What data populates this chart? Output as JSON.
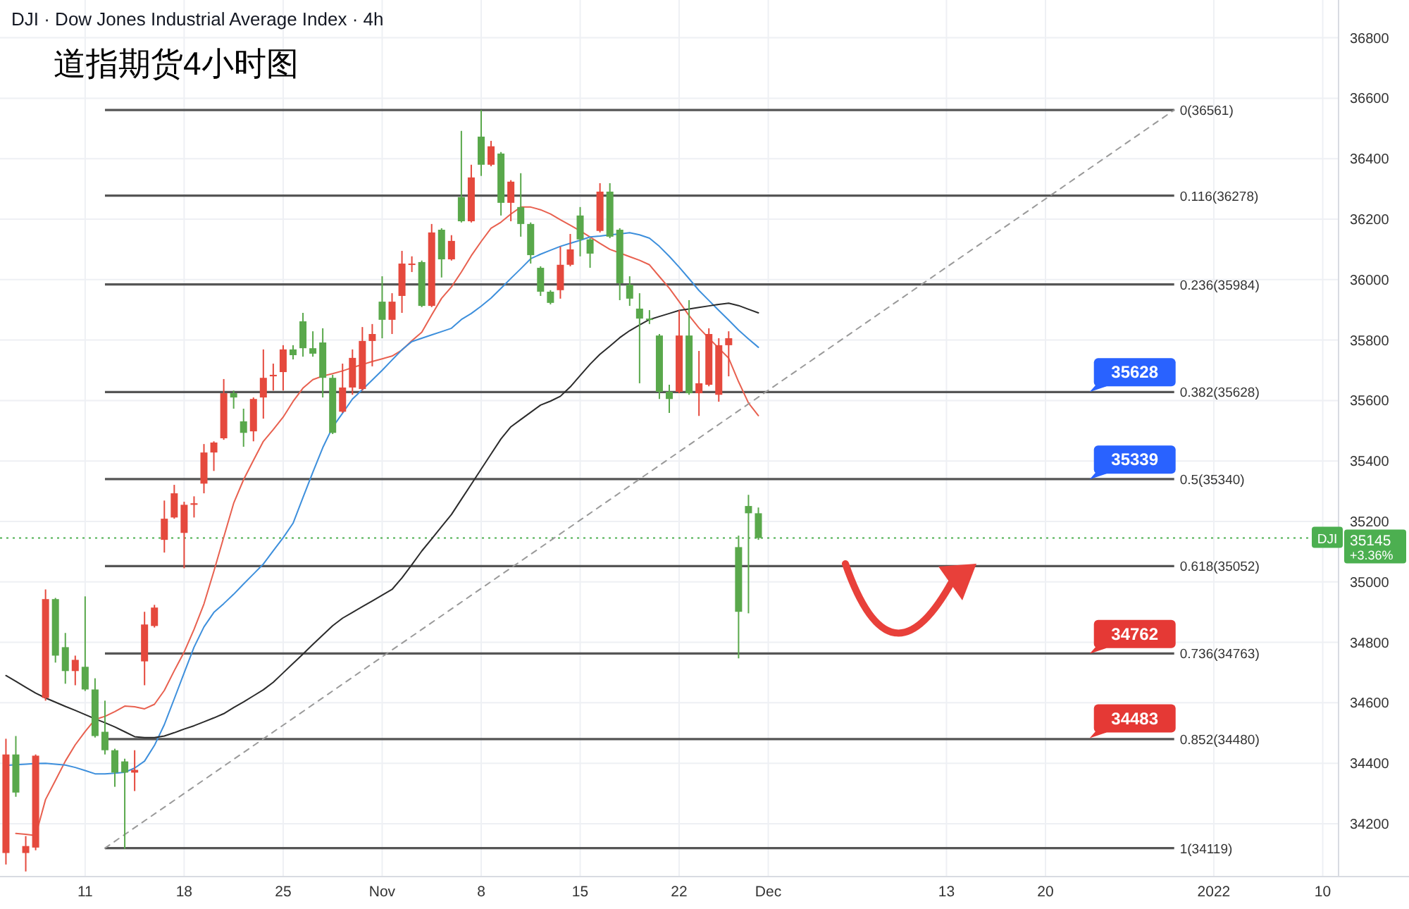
{
  "chart_data": {
    "type": "candlestick",
    "title": "道指期货4小时图",
    "subtitle": "DJI · Dow Jones Industrial Average Index · 4h",
    "categories": [
      null,
      null,
      null,
      null,
      null,
      null,
      null,
      null,
      "11",
      null,
      null,
      null,
      null,
      null,
      null,
      null,
      null,
      null,
      "18",
      null,
      null,
      null,
      null,
      null,
      null,
      null,
      null,
      null,
      "25",
      null,
      null,
      null,
      null,
      null,
      null,
      null,
      null,
      null,
      "Nov",
      null,
      null,
      null,
      null,
      null,
      null,
      null,
      null,
      null,
      "8",
      null,
      null,
      null,
      null,
      null,
      null,
      null,
      null,
      null,
      "15",
      null,
      null,
      null,
      null,
      null,
      null,
      null,
      null,
      null,
      "22",
      null,
      null,
      null,
      null,
      null,
      null,
      null,
      null,
      "Dec",
      null,
      null,
      null,
      null,
      null,
      null,
      null,
      null,
      null,
      null,
      null,
      null,
      null,
      null,
      null,
      null,
      null,
      "13",
      null,
      null,
      null,
      null,
      null,
      null,
      null,
      null,
      null,
      "20",
      null,
      null,
      null,
      null,
      null,
      null,
      null,
      null,
      null,
      null,
      null,
      null,
      null,
      null,
      null,
      null,
      "2022",
      null,
      null,
      null,
      null,
      null,
      null,
      null,
      null,
      null,
      null,
      "10",
      null
    ],
    "ohlc": [
      [
        34103,
        34481,
        34065,
        34429
      ],
      [
        34429,
        34490,
        34289,
        34303
      ],
      [
        34103,
        34159,
        34042,
        34126
      ],
      [
        34121,
        34429,
        34112,
        34425
      ],
      [
        34616,
        34975,
        34607,
        34943
      ],
      [
        34943,
        34947,
        34733,
        34756
      ],
      [
        34784,
        34831,
        34663,
        34705
      ],
      [
        34705,
        34756,
        34658,
        34742
      ],
      [
        34719,
        34952,
        34639,
        34644
      ],
      [
        34644,
        34681,
        34485,
        34490
      ],
      [
        34504,
        34607,
        34429,
        34443
      ],
      [
        34443,
        34448,
        34322,
        34369
      ],
      [
        34406,
        34415,
        34117,
        34369
      ],
      [
        34369,
        34443,
        34308,
        34378
      ],
      [
        34737,
        34901,
        34658,
        34859
      ],
      [
        34854,
        34924,
        34849,
        34915
      ],
      [
        35139,
        35269,
        35097,
        35209
      ],
      [
        35213,
        35321,
        35209,
        35293
      ],
      [
        35162,
        35265,
        35045,
        35255
      ],
      [
        35255,
        35283,
        35213,
        35260
      ],
      [
        35325,
        35456,
        35293,
        35428
      ],
      [
        35428,
        35465,
        35367,
        35461
      ],
      [
        35475,
        35671,
        35470,
        35624
      ],
      [
        35624,
        35633,
        35573,
        35610
      ],
      [
        35531,
        35573,
        35447,
        35493
      ],
      [
        35498,
        35610,
        35465,
        35605
      ],
      [
        35610,
        35769,
        35540,
        35675
      ],
      [
        35680,
        35722,
        35633,
        35685
      ],
      [
        35694,
        35783,
        35633,
        35769
      ],
      [
        35769,
        35783,
        35736,
        35750
      ],
      [
        35862,
        35890,
        35745,
        35773
      ],
      [
        35773,
        35829,
        35745,
        35755
      ],
      [
        35792,
        35839,
        35610,
        35675
      ],
      [
        35675,
        35685,
        35489,
        35493
      ],
      [
        35563,
        35722,
        35559,
        35643
      ],
      [
        35643,
        35769,
        35619,
        35741
      ],
      [
        35638,
        35843,
        35633,
        35797
      ],
      [
        35797,
        35853,
        35713,
        35820
      ],
      [
        35927,
        36011,
        35806,
        35867
      ],
      [
        35867,
        35955,
        35820,
        35927
      ],
      [
        35946,
        36095,
        35890,
        36053
      ],
      [
        36049,
        36077,
        36025,
        36053
      ],
      [
        36058,
        36063,
        35909,
        35913
      ],
      [
        35913,
        36184,
        35909,
        36156
      ],
      [
        36165,
        36170,
        36007,
        36067
      ],
      [
        36067,
        36147,
        36063,
        36128
      ],
      [
        36273,
        36492,
        36189,
        36193
      ],
      [
        36193,
        36380,
        36189,
        36338
      ],
      [
        36473,
        36561,
        36343,
        36380
      ],
      [
        36380,
        36459,
        36375,
        36441
      ],
      [
        36417,
        36422,
        36212,
        36254
      ],
      [
        36254,
        36329,
        36193,
        36324
      ],
      [
        36240,
        36352,
        36142,
        36184
      ],
      [
        36184,
        36189,
        36053,
        36081
      ],
      [
        36039,
        36044,
        35946,
        35960
      ],
      [
        35960,
        35965,
        35918,
        35923
      ],
      [
        35965,
        36109,
        35937,
        36049
      ],
      [
        36049,
        36151,
        36044,
        36100
      ],
      [
        36212,
        36240,
        36077,
        36133
      ],
      [
        36133,
        36137,
        36039,
        36086
      ],
      [
        36161,
        36319,
        36156,
        36291
      ],
      [
        36291,
        36319,
        36137,
        36142
      ],
      [
        36165,
        36170,
        35932,
        35988
      ],
      [
        35983,
        36011,
        35913,
        35937
      ],
      [
        35904,
        35955,
        35657,
        35871
      ],
      [
        35871,
        35899,
        35853,
        35867
      ],
      [
        35815,
        35820,
        35605,
        35629
      ],
      [
        35629,
        35652,
        35559,
        35605
      ],
      [
        35629,
        35899,
        35624,
        35815
      ],
      [
        35815,
        35932,
        35619,
        35624
      ],
      [
        35624,
        35764,
        35549,
        35657
      ],
      [
        35652,
        35839,
        35647,
        35820
      ],
      [
        35619,
        35806,
        35596,
        35783
      ],
      [
        35783,
        35829,
        35680,
        35806
      ],
      [
        35115,
        35153,
        34747,
        34901
      ],
      [
        35251,
        35288,
        34896,
        35227
      ],
      [
        35227,
        35246,
        35139,
        35145
      ],
      null,
      null,
      null,
      null,
      null,
      null,
      null,
      null,
      null,
      null,
      null,
      null,
      null,
      null,
      null,
      null,
      null,
      null,
      null,
      null,
      null,
      null,
      null,
      null,
      null,
      null,
      null,
      null,
      null,
      null,
      null,
      null,
      null,
      null,
      null,
      null,
      null,
      null,
      null,
      null,
      null,
      null,
      null,
      null,
      null,
      null,
      null,
      null,
      null,
      null,
      null,
      null,
      null,
      null,
      null,
      null,
      null,
      null
    ],
    "colors": [
      "#e5493d",
      "#59a84b",
      "#e5493d",
      "#e5493d",
      "#e5493d",
      "#59a84b",
      "#59a84b",
      "#e5493d",
      "#59a84b",
      "#59a84b",
      "#59a84b",
      "#59a84b",
      "#59a84b",
      "#e5493d",
      "#e5493d",
      "#e5493d",
      "#e5493d",
      "#e5493d",
      "#e5493d",
      "#e5493d",
      "#e5493d",
      "#e5493d",
      "#e5493d",
      "#59a84b",
      "#59a84b",
      "#e5493d",
      "#e5493d",
      "#e5493d",
      "#e5493d",
      "#59a84b",
      "#59a84b",
      "#59a84b",
      "#59a84b",
      "#59a84b",
      "#e5493d",
      "#e5493d",
      "#e5493d",
      "#e5493d",
      "#59a84b",
      "#e5493d",
      "#e5493d",
      "#e5493d",
      "#59a84b",
      "#e5493d",
      "#59a84b",
      "#e5493d",
      "#59a84b",
      "#e5493d",
      "#59a84b",
      "#e5493d",
      "#59a84b",
      "#e5493d",
      "#59a84b",
      "#59a84b",
      "#59a84b",
      "#59a84b",
      "#e5493d",
      "#e5493d",
      "#59a84b",
      "#59a84b",
      "#e5493d",
      "#59a84b",
      "#59a84b",
      "#59a84b",
      "#59a84b",
      "#59a84b",
      "#59a84b",
      "#59a84b",
      "#e5493d",
      "#59a84b",
      "#e5493d",
      "#e5493d",
      "#e5493d",
      "#e5493d",
      "#59a84b",
      "#59a84b",
      "#59a84b",
      null,
      null,
      null,
      null,
      null,
      null,
      null,
      null,
      null,
      null,
      null,
      null,
      null,
      null,
      null,
      null,
      null,
      null,
      null,
      null,
      null,
      null,
      null,
      null,
      null,
      null,
      null,
      null,
      null,
      null,
      null,
      null,
      null,
      null,
      null,
      null,
      null,
      null,
      null,
      null,
      null,
      null,
      null,
      null,
      null,
      null,
      null,
      null,
      null,
      null,
      null,
      null,
      null,
      null,
      null,
      null,
      null,
      null
    ],
    "series": [
      {
        "type": "line",
        "color": "#e8604f",
        "values": [
          null,
          34168,
          34165,
          34161,
          34280,
          34343,
          34407,
          34461,
          34505,
          34545,
          34555,
          34571,
          34589,
          34587,
          34580,
          34595,
          34641,
          34706,
          34768,
          34843,
          34927,
          35035,
          35148,
          35260,
          35338,
          35402,
          35465,
          35504,
          35545,
          35597,
          35641,
          35669,
          35681,
          35689,
          35698,
          35709,
          35719,
          35729,
          35738,
          35747,
          35767,
          35798,
          35826,
          35883,
          35938,
          35976,
          36025,
          36079,
          36126,
          36170,
          36190,
          36217,
          36240,
          36240,
          36231,
          36217,
          36198,
          36180,
          36161,
          36141,
          36120,
          36100,
          36088,
          36076,
          36064,
          36049,
          36010,
          35972,
          35927,
          35881,
          35840,
          35806,
          35773,
          35740,
          35662,
          35592,
          35550,
          null,
          null,
          null,
          null,
          null,
          null,
          null,
          null,
          null,
          null,
          null,
          null,
          null,
          null,
          null,
          null,
          null,
          null,
          null,
          null,
          null,
          null,
          null,
          null,
          null,
          null,
          null,
          null,
          null,
          null,
          null,
          null,
          null,
          null,
          null,
          null,
          null,
          null,
          null,
          null,
          null,
          null,
          null,
          null,
          null,
          null,
          null,
          null,
          null,
          null,
          null,
          null,
          null,
          null,
          null,
          null,
          null,
          null
        ]
      },
      {
        "type": "line",
        "color": "#3d8fdc",
        "values": [
          34393,
          34395,
          34397,
          34399,
          34400,
          34397,
          34394,
          34386,
          34376,
          34365,
          34365,
          34367,
          34370,
          34384,
          34407,
          34459,
          34528,
          34613,
          34699,
          34784,
          34851,
          34899,
          34928,
          34959,
          34993,
          35026,
          35059,
          35103,
          35146,
          35194,
          35279,
          35363,
          35444,
          35512,
          35558,
          35605,
          35636,
          35668,
          35700,
          35734,
          35768,
          35795,
          35806,
          35817,
          35828,
          35839,
          35868,
          35888,
          35912,
          35939,
          35971,
          36004,
          36036,
          36069,
          36084,
          36097,
          36110,
          36120,
          36130,
          36141,
          36144,
          36148,
          36151,
          36155,
          36148,
          36137,
          36110,
          36077,
          36041,
          36003,
          35964,
          35931,
          35898,
          35866,
          35833,
          35804,
          35776,
          null,
          null,
          null,
          null,
          null,
          null,
          null,
          null,
          null,
          null,
          null,
          null,
          null,
          null,
          null,
          null,
          null,
          null,
          null,
          null,
          null,
          null,
          null,
          null,
          null,
          null,
          null,
          null,
          null,
          null,
          null,
          null,
          null,
          null,
          null,
          null,
          null,
          null,
          null,
          null,
          null,
          null,
          null,
          null,
          null,
          null,
          null,
          null,
          null,
          null,
          null,
          null,
          null,
          null,
          null,
          null,
          null,
          null
        ]
      },
      {
        "type": "line",
        "color": "#2b2b2b",
        "values": [
          34690,
          34671,
          34651,
          34632,
          34616,
          34602,
          34588,
          34575,
          34561,
          34547,
          34534,
          34520,
          34504,
          34488,
          34485,
          34485,
          34490,
          34501,
          34513,
          34524,
          34537,
          34550,
          34564,
          34584,
          34603,
          34623,
          34643,
          34668,
          34699,
          34730,
          34761,
          34793,
          34824,
          34855,
          34880,
          34899,
          34918,
          34937,
          34956,
          34975,
          35013,
          35057,
          35102,
          35142,
          35183,
          35223,
          35273,
          35323,
          35373,
          35423,
          35473,
          35513,
          35537,
          35561,
          35585,
          35598,
          35614,
          35645,
          35683,
          35720,
          35753,
          35780,
          35808,
          35831,
          35850,
          35868,
          35878,
          35888,
          35898,
          35903,
          35908,
          35913,
          35918,
          35922,
          35914,
          35902,
          35890,
          null,
          null,
          null,
          null,
          null,
          null,
          null,
          null,
          null,
          null,
          null,
          null,
          null,
          null,
          null,
          null,
          null,
          null,
          null,
          null,
          null,
          null,
          null,
          null,
          null,
          null,
          null,
          null,
          null,
          null,
          null,
          null,
          null,
          null,
          null,
          null,
          null,
          null,
          null,
          null,
          null,
          null,
          null,
          null,
          null,
          null,
          null,
          null,
          null,
          null,
          null,
          null,
          null,
          null,
          null,
          null,
          null,
          null
        ]
      },
      {
        "type": "line",
        "color": "#9a9a9a",
        "line_style": "dashed",
        "values": [
          null,
          null,
          null,
          null,
          null,
          null,
          null,
          null,
          null,
          null,
          34119,
          null,
          null,
          null,
          null,
          null,
          null,
          null,
          null,
          null,
          null,
          null,
          null,
          null,
          null,
          null,
          null,
          null,
          null,
          null,
          null,
          null,
          null,
          null,
          null,
          null,
          null,
          null,
          null,
          null,
          null,
          null,
          null,
          null,
          null,
          null,
          null,
          null,
          null,
          null,
          null,
          null,
          null,
          null,
          null,
          null,
          null,
          null,
          null,
          null,
          null,
          null,
          null,
          null,
          null,
          null,
          null,
          null,
          null,
          null,
          null,
          null,
          null,
          null,
          null,
          null,
          null,
          null,
          null,
          null,
          null,
          null,
          null,
          null,
          null,
          null,
          null,
          null,
          null,
          null,
          null,
          null,
          null,
          null,
          null,
          null,
          null,
          null,
          null,
          null,
          null,
          null,
          null,
          null,
          null,
          null,
          null,
          null,
          null,
          null,
          null,
          null,
          null,
          null,
          null,
          null,
          null,
          null,
          36561,
          null,
          null,
          null,
          null,
          null,
          null,
          null,
          null,
          null,
          null,
          null,
          null,
          null,
          null,
          null,
          null
        ]
      }
    ],
    "ylim": [
      34025,
      36925
    ],
    "yticks": [
      34200,
      34400,
      34600,
      34800,
      35000,
      35200,
      35400,
      35600,
      35800,
      36000,
      36200,
      36400,
      36600,
      36800
    ],
    "grid": true,
    "ref_lines": [
      {
        "axis": "y",
        "value": 36561,
        "label": "0(36561)",
        "color": "#555555"
      },
      {
        "axis": "y",
        "value": 36278,
        "label": "0.116(36278)",
        "color": "#555555"
      },
      {
        "axis": "y",
        "value": 35984,
        "label": "0.236(35984)",
        "color": "#555555"
      },
      {
        "axis": "y",
        "value": 35628,
        "label": "0.382(35628)",
        "color": "#555555"
      },
      {
        "axis": "y",
        "value": 35340,
        "label": "0.5(35340)",
        "color": "#555555"
      },
      {
        "axis": "y",
        "value": 35052,
        "label": "0.618(35052)",
        "color": "#555555"
      },
      {
        "axis": "y",
        "value": 34763,
        "label": "0.736(34763)",
        "color": "#555555"
      },
      {
        "axis": "y",
        "value": 34480,
        "label": "0.852(34480)",
        "color": "#555555"
      },
      {
        "axis": "y",
        "value": 34119,
        "label": "1(34119)",
        "color": "#555555"
      },
      {
        "axis": "y",
        "value": 35145,
        "label": "35145",
        "color": "#4caf50",
        "line_style": "dotted"
      }
    ],
    "annotations": [
      {
        "text": "35628",
        "y": 35628
      },
      {
        "text": "35339",
        "y": 35339
      },
      {
        "text": "34762",
        "y": 34762
      },
      {
        "text": "34483",
        "y": 34483
      },
      "DJI",
      "+3.36%"
    ]
  }
}
